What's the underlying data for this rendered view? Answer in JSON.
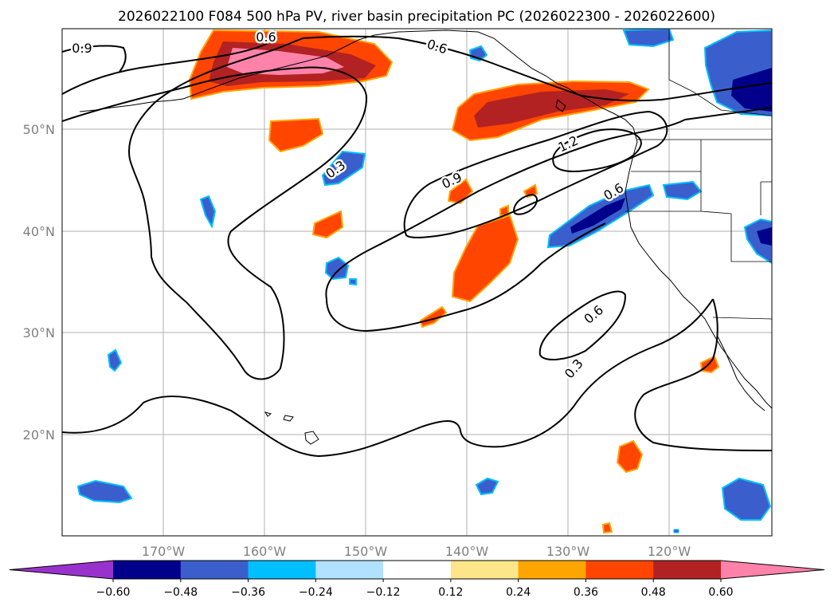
{
  "title": "2026022100 F084 500 hPa PV, river basin precipitation PC (2026022300 - 2026022600)",
  "lat_ticks": [
    "50°N",
    "40°N",
    "30°N",
    "20°N"
  ],
  "lon_ticks": [
    "170°W",
    "160°W",
    "150°W",
    "140°W",
    "130°W",
    "120°W"
  ],
  "contour_labels": [
    "0.9",
    "0.6",
    "0.6",
    "0.3",
    "1.2",
    "0.9",
    "0.6",
    "0.6",
    "0.3"
  ],
  "colorbar": {
    "ticks": [
      "−0.60",
      "−0.48",
      "−0.36",
      "−0.24",
      "−0.12",
      "0.12",
      "0.24",
      "0.36",
      "0.48",
      "0.60"
    ],
    "colors": [
      "#9932cc",
      "#00008b",
      "#3a5fcd",
      "#00bfff",
      "#b0e2ff",
      "#ffffff",
      "#fde68a",
      "#ffa500",
      "#ff4500",
      "#b22222",
      "#ff82ab"
    ],
    "extend": "both"
  }
}
